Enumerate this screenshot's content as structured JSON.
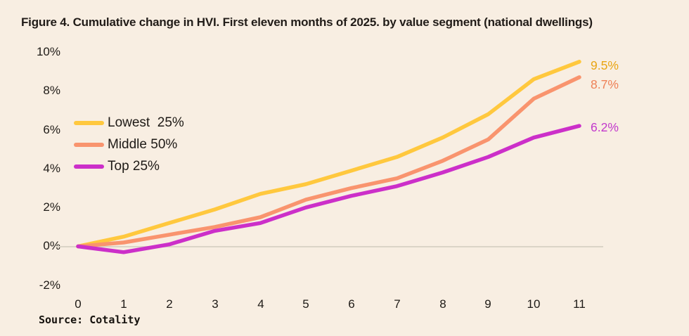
{
  "title": "Figure 4. Cumulative change in HVI. First eleven months of 2025. by value segment (national dwellings)",
  "source": "Source: Cotality",
  "colors": {
    "background": "#F8EEE2",
    "text": "#1E1A16",
    "gridline": "#DBD4C7"
  },
  "chart_data": {
    "type": "line",
    "title": "Figure 4. Cumulative change in HVI. First eleven months of 2025. by value segment (national dwellings)",
    "xlabel": "",
    "ylabel": "",
    "x": [
      0,
      1,
      2,
      3,
      4,
      5,
      6,
      7,
      8,
      9,
      10,
      11
    ],
    "xticks": [
      "0",
      "1",
      "2",
      "3",
      "4",
      "5",
      "6",
      "7",
      "8",
      "9",
      "10",
      "11"
    ],
    "yticks": [
      "10%",
      "8%",
      "6%",
      "4%",
      "2%",
      "0%",
      "-2%"
    ],
    "ytick_values": [
      10,
      8,
      6,
      4,
      2,
      0,
      -2
    ],
    "ylim": [
      -2,
      10
    ],
    "grid": "zero-line-only",
    "legend_position": "upper-left",
    "series": [
      {
        "name": "Lowest  25%",
        "color": "#FFC83E",
        "label_color": "#E9A513",
        "end_label": "9.5%",
        "values": [
          0,
          0.5,
          1.2,
          1.9,
          2.7,
          3.2,
          3.9,
          4.6,
          5.6,
          6.8,
          8.6,
          9.5
        ]
      },
      {
        "name": "Middle 50%",
        "color": "#F9946E",
        "label_color": "#EE8157",
        "end_label": "8.7%",
        "values": [
          0,
          0.2,
          0.6,
          1.0,
          1.5,
          2.4,
          3.0,
          3.5,
          4.4,
          5.5,
          7.6,
          8.7
        ]
      },
      {
        "name": "Top 25%",
        "color": "#CC2FC9",
        "label_color": "#C238CC",
        "end_label": "6.2%",
        "values": [
          0,
          -0.3,
          0.1,
          0.8,
          1.2,
          2.0,
          2.6,
          3.1,
          3.8,
          4.6,
          5.6,
          6.2
        ]
      }
    ]
  }
}
